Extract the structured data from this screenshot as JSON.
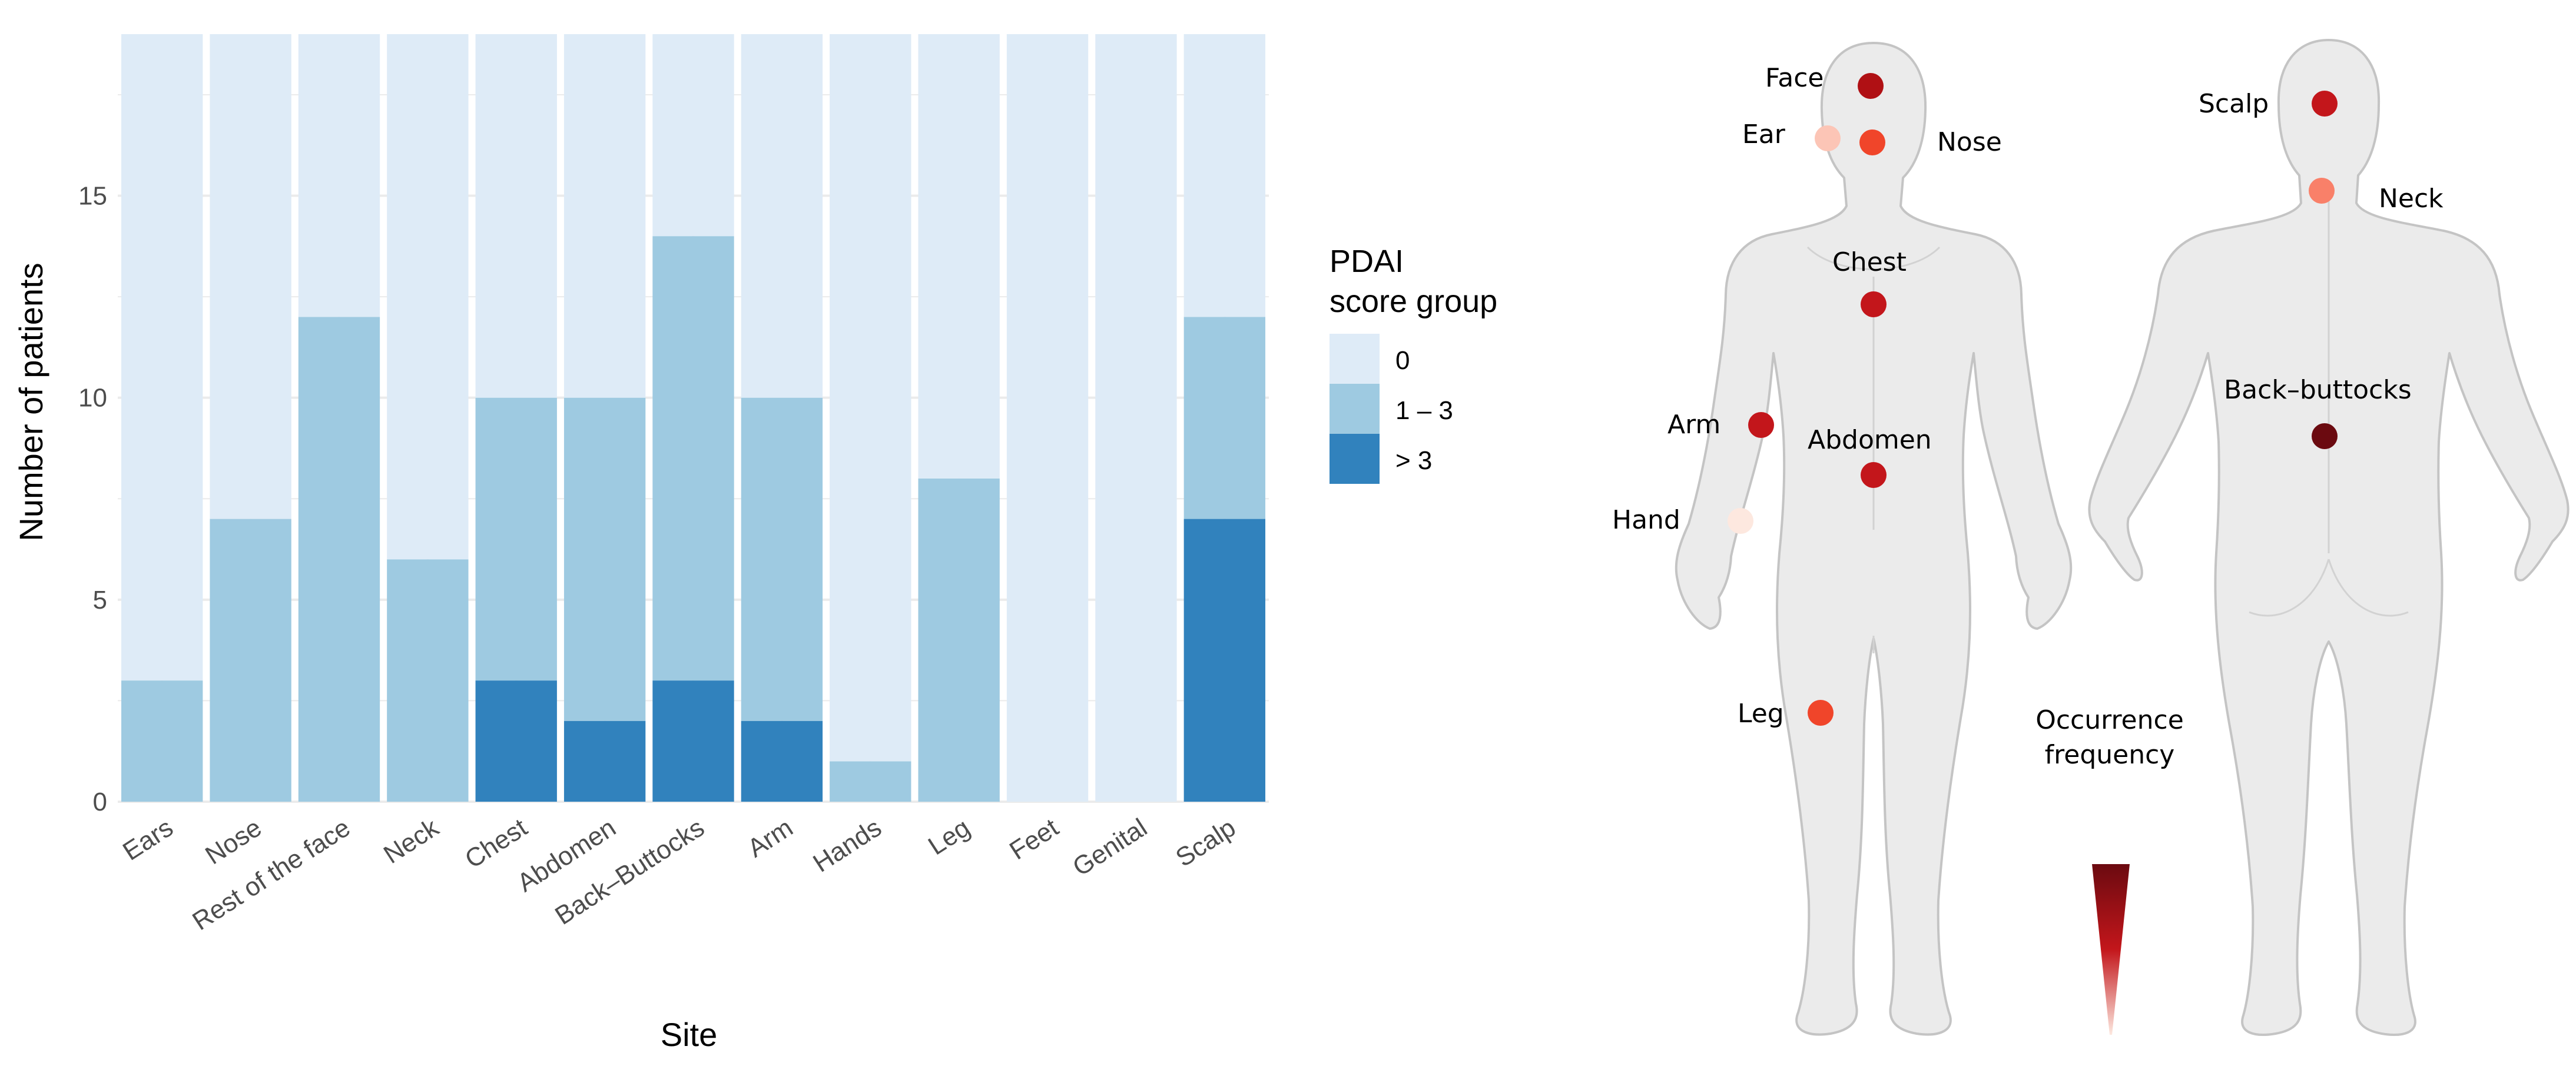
{
  "chart_data": {
    "type": "bar",
    "stacked": true,
    "xlabel": "Site",
    "ylabel": "Number of patients",
    "ylim": [
      0,
      19
    ],
    "yticks": [
      0,
      5,
      10,
      15
    ],
    "total_patients": 19,
    "categories": [
      "Ears",
      "Nose",
      "Rest of the face",
      "Neck",
      "Chest",
      "Abdomen",
      "Back–Buttocks",
      "Arm",
      "Hands",
      "Leg",
      "Feet",
      "Genital",
      "Scalp"
    ],
    "series": [
      {
        "name": "> 3",
        "color": "#3182bd",
        "values": [
          0,
          0,
          0,
          0,
          3,
          2,
          3,
          2,
          0,
          0,
          0,
          0,
          7
        ]
      },
      {
        "name": "1 – 3",
        "color": "#9ecae1",
        "values": [
          3,
          7,
          12,
          6,
          7,
          8,
          11,
          8,
          1,
          8,
          0,
          0,
          5
        ]
      },
      {
        "name": "0",
        "color": "#deebf7",
        "values": [
          16,
          12,
          7,
          13,
          9,
          9,
          5,
          9,
          18,
          11,
          19,
          19,
          7
        ]
      }
    ],
    "legend": {
      "title_line1": "PDAI",
      "title_line2": "score group",
      "entries": [
        "0",
        "1 – 3",
        "> 3"
      ],
      "colors": [
        "#deebf7",
        "#9ecae1",
        "#3182bd"
      ],
      "position": "right"
    },
    "grid": true
  },
  "body_map": {
    "front_labels": [
      "Face",
      "Ear",
      "Nose",
      "Chest",
      "Arm",
      "Abdomen",
      "Hand",
      "Leg"
    ],
    "back_labels": [
      "Scalp",
      "Neck",
      "Back–buttocks"
    ],
    "marker_colors": {
      "Face": "#b01014",
      "Ear": "#fcc5b6",
      "Nose": "#f0452a",
      "Chest": "#c3161b",
      "Arm": "#c3161b",
      "Abdomen": "#c3161b",
      "Hand": "#fde8df",
      "Leg": "#f0452a",
      "Scalp": "#c3161b",
      "Neck": "#f98069",
      "Back–buttocks": "#6b0a10"
    },
    "frequency_legend": {
      "line1": "Occurrence",
      "line2": "frequency"
    }
  }
}
